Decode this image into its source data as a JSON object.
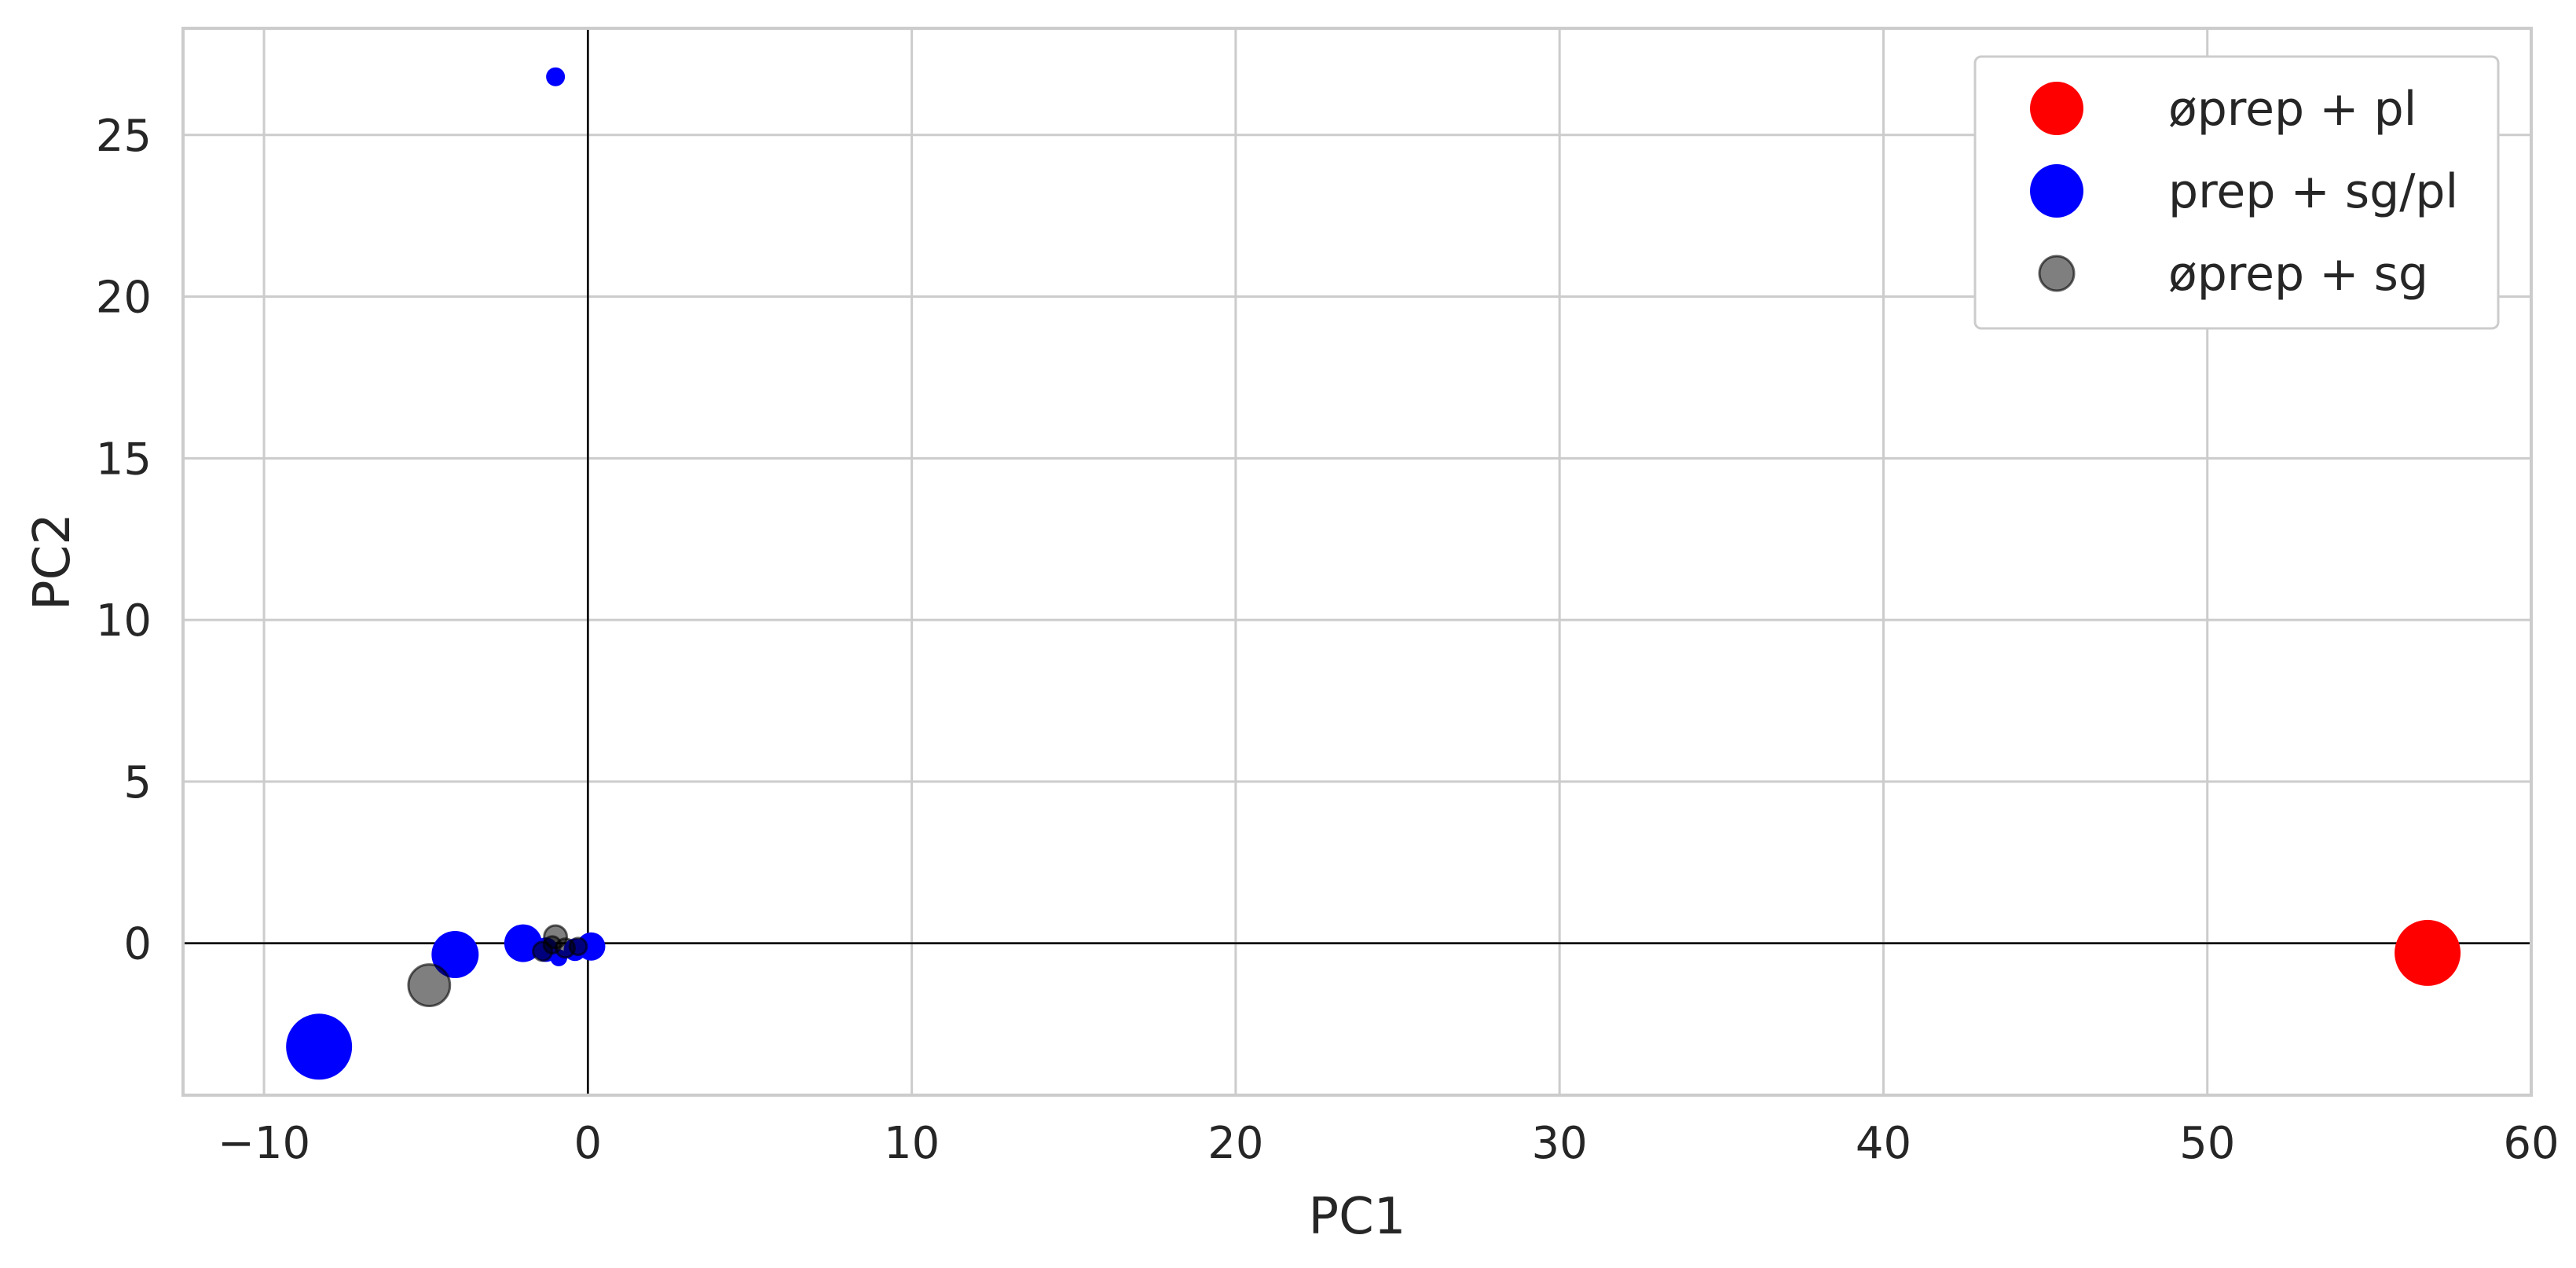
{
  "chart_data": {
    "type": "scatter",
    "title": "",
    "xlabel": "PC1",
    "ylabel": "PC2",
    "xlim": [
      -12.5,
      60
    ],
    "ylim": [
      -4.7,
      28.3
    ],
    "xticks": [
      -10,
      0,
      10,
      20,
      30,
      40,
      50,
      60
    ],
    "xtick_labels": [
      "−10",
      "0",
      "10",
      "20",
      "30",
      "40",
      "50",
      "60"
    ],
    "yticks": [
      0,
      5,
      10,
      15,
      20,
      25
    ],
    "ytick_labels": [
      "0",
      "5",
      "10",
      "15",
      "20",
      "25"
    ],
    "grid": true,
    "reference_lines": {
      "x": 0,
      "y": 0
    },
    "legend_position": "top-right",
    "series": [
      {
        "name": "øprep + pl",
        "color": "#ff0000",
        "opacity": 1.0,
        "points": [
          {
            "x": 56.8,
            "y": -0.3,
            "size": 3.5
          }
        ]
      },
      {
        "name": "prep + sg/pl",
        "color": "#0000ff",
        "opacity": 1.0,
        "points": [
          {
            "x": -1.0,
            "y": 26.8,
            "size": 1
          },
          {
            "x": -8.3,
            "y": -3.2,
            "size": 3.5
          },
          {
            "x": -4.1,
            "y": -0.35,
            "size": 2.5
          },
          {
            "x": -2.0,
            "y": 0.0,
            "size": 2
          },
          {
            "x": 0.1,
            "y": -0.1,
            "size": 1.5
          },
          {
            "x": -0.4,
            "y": -0.2,
            "size": 1.2
          },
          {
            "x": -1.3,
            "y": -0.2,
            "size": 1.3
          },
          {
            "x": -0.9,
            "y": -0.45,
            "size": 0.9
          }
        ]
      },
      {
        "name": "øprep + sg",
        "color": "#000000",
        "opacity": 0.5,
        "points": [
          {
            "x": -4.9,
            "y": -1.3,
            "size": 2.2
          },
          {
            "x": -1.0,
            "y": 0.2,
            "size": 1.2
          },
          {
            "x": -1.4,
            "y": -0.25,
            "size": 1.0
          },
          {
            "x": -0.7,
            "y": -0.15,
            "size": 1.0
          },
          {
            "x": -0.3,
            "y": -0.1,
            "size": 0.9
          },
          {
            "x": -1.1,
            "y": -0.05,
            "size": 0.9
          }
        ]
      }
    ]
  }
}
